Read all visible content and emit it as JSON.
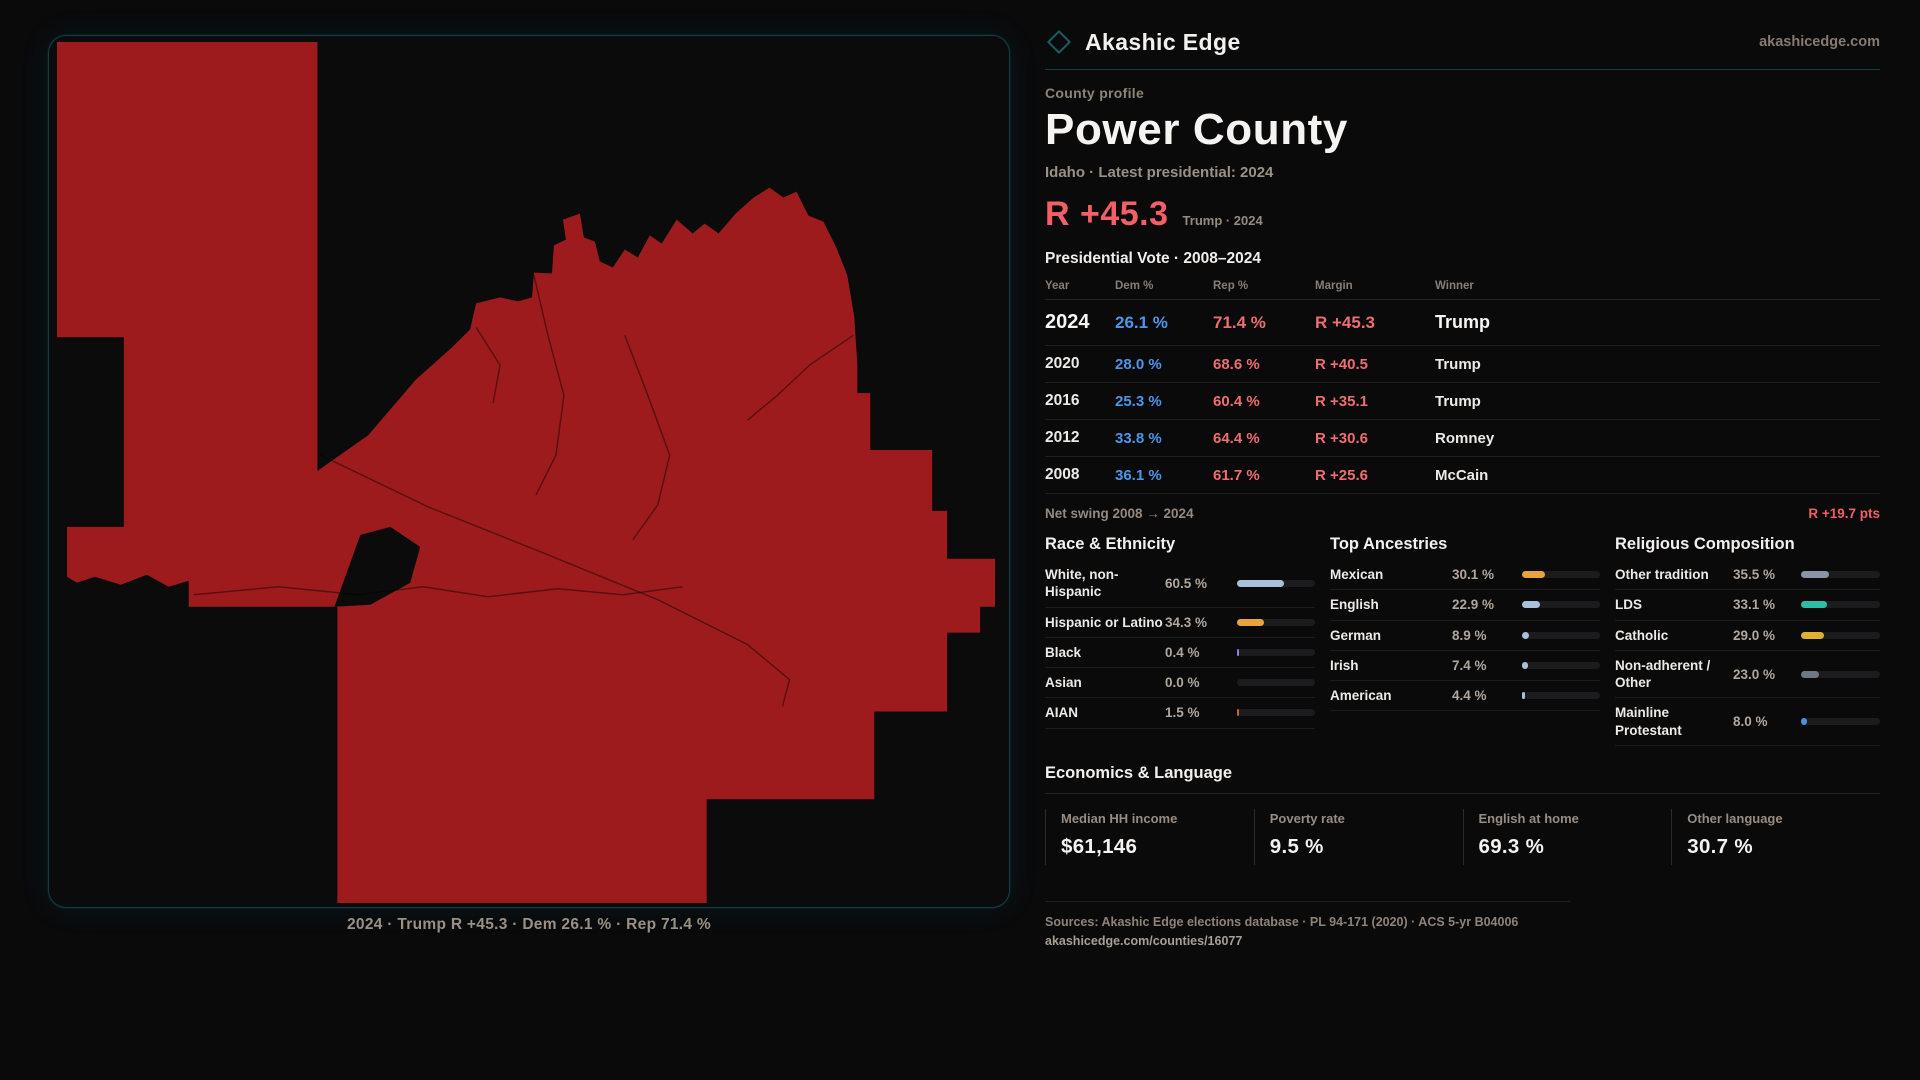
{
  "brand": {
    "name": "Akashic Edge",
    "domain": "akashicedge.com",
    "accent_teal": "#15505c"
  },
  "profile": {
    "kicker": "County profile",
    "title": "Power County",
    "subtitle": "Idaho · Latest presidential: 2024",
    "margin_value": "R +45.3",
    "margin_caption": "Trump · 2024"
  },
  "map": {
    "caption": "2024 · Trump R +45.3 · Dem 26.1 % · Rep 71.4 %",
    "county_fill": "#9e1b1d",
    "panel_border": "#123e47"
  },
  "vote_table": {
    "title": "Presidential Vote · 2008–2024",
    "columns": [
      "Year",
      "Dem %",
      "Rep %",
      "Margin",
      "Winner"
    ],
    "rows": [
      {
        "year": "2024",
        "dem": "26.1 %",
        "rep": "71.4 %",
        "margin": "R +45.3",
        "winner": "Trump",
        "highlight": true
      },
      {
        "year": "2020",
        "dem": "28.0 %",
        "rep": "68.6 %",
        "margin": "R +40.5",
        "winner": "Trump",
        "highlight": false
      },
      {
        "year": "2016",
        "dem": "25.3 %",
        "rep": "60.4 %",
        "margin": "R +35.1",
        "winner": "Trump",
        "highlight": false
      },
      {
        "year": "2012",
        "dem": "33.8 %",
        "rep": "64.4 %",
        "margin": "R +30.6",
        "winner": "Romney",
        "highlight": false
      },
      {
        "year": "2008",
        "dem": "36.1 %",
        "rep": "61.7 %",
        "margin": "R +25.6",
        "winner": "McCain",
        "highlight": false
      }
    ],
    "dem_color": "#4e95e9",
    "rep_color": "#ee6d70",
    "net_swing_label": "Net swing 2008 → 2024",
    "net_swing_value": "R +19.7 pts"
  },
  "race": {
    "title": "Race & Ethnicity",
    "rows": [
      {
        "label": "White, non-Hispanic",
        "value": "60.5 %",
        "pct": 60.5,
        "color": "#a9c0da"
      },
      {
        "label": "Hispanic or Latino",
        "value": "34.3 %",
        "pct": 34.3,
        "color": "#e8a33c"
      },
      {
        "label": "Black",
        "value": "0.4 %",
        "pct": 0.4,
        "color": "#8b7fe0"
      },
      {
        "label": "Asian",
        "value": "0.0 %",
        "pct": 0.0,
        "color": "#a9c0da"
      },
      {
        "label": "AIAN",
        "value": "1.5 %",
        "pct": 1.5,
        "color": "#bf6a28"
      }
    ]
  },
  "ancestries": {
    "title": "Top Ancestries",
    "rows": [
      {
        "label": "Mexican",
        "value": "30.1 %",
        "pct": 30.1,
        "color": "#e8a33c"
      },
      {
        "label": "English",
        "value": "22.9 %",
        "pct": 22.9,
        "color": "#a9c0da"
      },
      {
        "label": "German",
        "value": "8.9 %",
        "pct": 8.9,
        "color": "#a9c0da"
      },
      {
        "label": "Irish",
        "value": "7.4 %",
        "pct": 7.4,
        "color": "#a9c0da"
      },
      {
        "label": "American",
        "value": "4.4 %",
        "pct": 4.4,
        "color": "#a9c0da"
      }
    ]
  },
  "religion": {
    "title": "Religious Composition",
    "rows": [
      {
        "label": "Other tradition",
        "value": "35.5 %",
        "pct": 35.5,
        "color": "#8b93a6"
      },
      {
        "label": "LDS",
        "value": "33.1 %",
        "pct": 33.1,
        "color": "#2dbfa6"
      },
      {
        "label": "Catholic",
        "value": "29.0 %",
        "pct": 29.0,
        "color": "#ddb233"
      },
      {
        "label": "Non-adherent / Other",
        "value": "23.0 %",
        "pct": 23.0,
        "color": "#6e7886"
      },
      {
        "label": "Mainline Protestant",
        "value": "8.0 %",
        "pct": 8.0,
        "color": "#4a90e2"
      }
    ]
  },
  "econ": {
    "title": "Economics & Language",
    "stats": [
      {
        "label": "Median HH income",
        "value": "$61,146"
      },
      {
        "label": "Poverty rate",
        "value": "9.5 %"
      },
      {
        "label": "English at home",
        "value": "69.3 %"
      },
      {
        "label": "Other language",
        "value": "30.7 %"
      }
    ]
  },
  "footer": {
    "sources": "Sources: Akashic Edge elections database · PL 94-171 (2020) · ACS 5-yr B04006",
    "permalink": "akashicedge.com/counties/16077"
  }
}
